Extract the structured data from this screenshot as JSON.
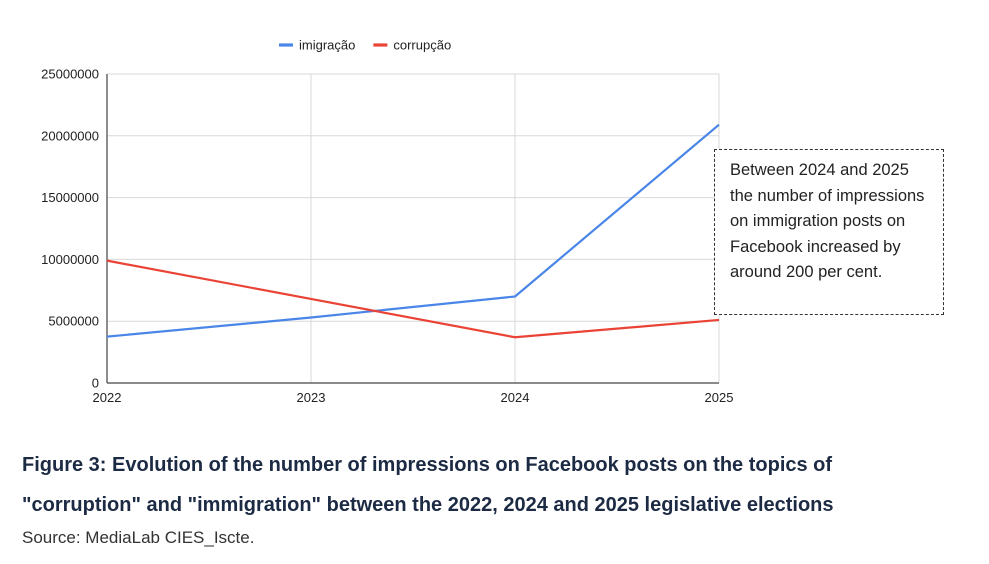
{
  "chart_data": {
    "type": "line",
    "categories": [
      "2022",
      "2023",
      "2024",
      "2025"
    ],
    "series": [
      {
        "name": "imigração",
        "color": "#4a86e8",
        "values": [
          3750000,
          5300000,
          7000000,
          20900000
        ]
      },
      {
        "name": "corrupção",
        "color": "#ea4335",
        "values": [
          9900000,
          6800000,
          3700000,
          5100000
        ]
      }
    ],
    "ylim": [
      0,
      25000000
    ],
    "yticks": [
      "0",
      "5000000",
      "10000000",
      "15000000",
      "20000000",
      "25000000"
    ],
    "legend_position": "top",
    "grid": true,
    "annotation": "Between 2024 and 2025 the number of impressions on immigration posts on Facebook increased by around 200 per cent."
  },
  "caption": {
    "title": "Figure 3: Evolution of the number of impressions on Facebook posts on the topics of \"corruption\" and \"immigration\" between the 2022, 2024 and 2025 legislative elections",
    "source": "Source: MediaLab CIES_Iscte."
  }
}
